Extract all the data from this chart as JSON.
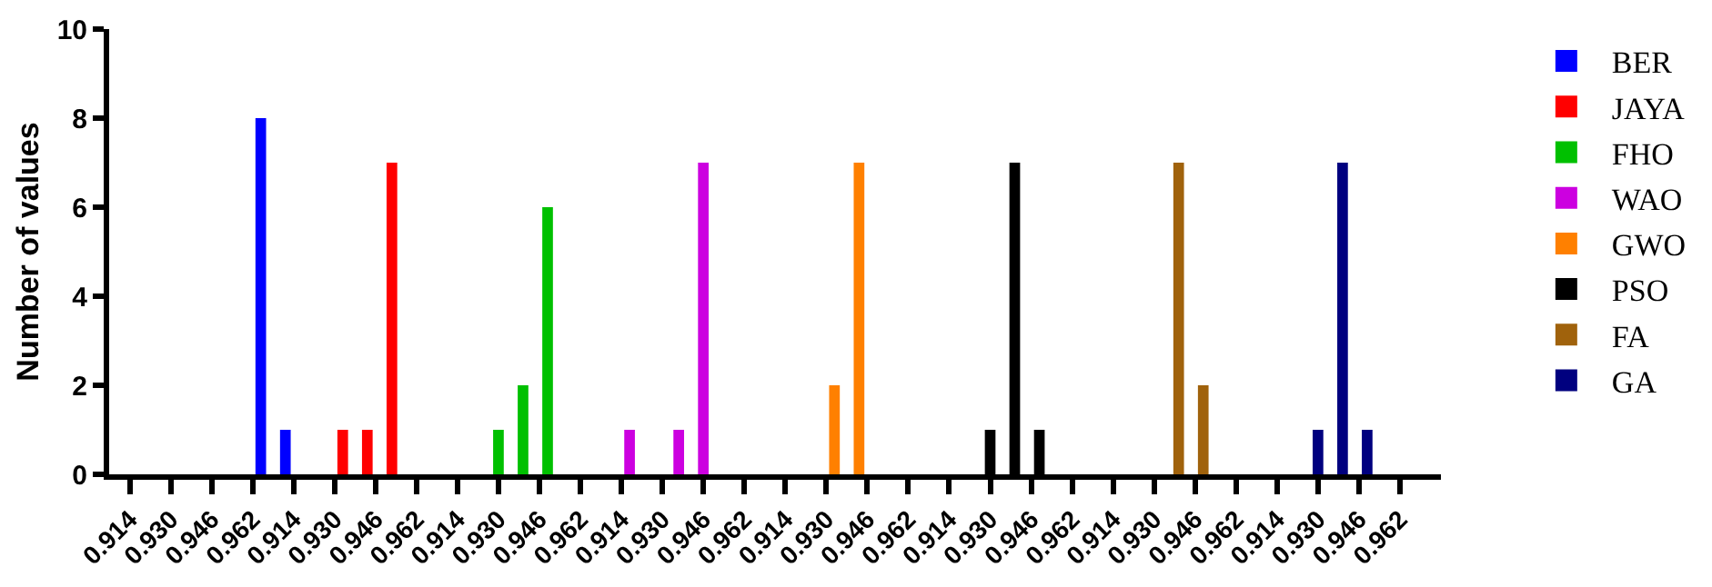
{
  "chart_data": {
    "type": "bar",
    "ylabel": "Number of values",
    "categories": [
      "0.914",
      null,
      null,
      null,
      null,
      "0.930",
      null,
      null,
      null,
      null,
      "0.946",
      null,
      null,
      null,
      null,
      "0.962",
      null,
      null,
      null,
      null,
      "0.914",
      null,
      null,
      null,
      null,
      "0.930",
      null,
      null,
      null,
      null,
      "0.946",
      null,
      null,
      null,
      null,
      "0.962",
      null,
      null,
      null,
      null,
      "0.914",
      null,
      null,
      null,
      null,
      "0.930",
      null,
      null,
      null,
      null,
      "0.946",
      null,
      null,
      null,
      null,
      "0.962",
      null,
      null,
      null,
      null,
      "0.914",
      null,
      null,
      null,
      null,
      "0.930",
      null,
      null,
      null,
      null,
      "0.946",
      null,
      null,
      null,
      null,
      "0.962",
      null,
      null,
      null,
      null,
      "0.914",
      null,
      null,
      null,
      null,
      "0.930",
      null,
      null,
      null,
      null,
      "0.946",
      null,
      null,
      null,
      null,
      "0.962",
      null,
      null,
      null,
      null,
      "0.914",
      null,
      null,
      null,
      null,
      "0.930",
      null,
      null,
      null,
      null,
      "0.946",
      null,
      null,
      null,
      null,
      "0.962",
      null,
      null,
      null,
      null,
      "0.914",
      null,
      null,
      null,
      null,
      "0.930",
      null,
      null,
      null,
      null,
      "0.946",
      null,
      null,
      null,
      null,
      "0.962",
      null,
      null,
      null,
      null,
      "0.914",
      null,
      null,
      null,
      null,
      "0.930",
      null,
      null,
      null,
      null,
      "0.946",
      null,
      null,
      null,
      null,
      "0.962",
      null,
      null,
      null,
      null
    ],
    "ylim": [
      0,
      10
    ],
    "yticks": [
      0,
      2,
      4,
      6,
      8,
      10
    ],
    "legend": "right",
    "series": [
      {
        "name": "BER",
        "color": "#0000ff",
        "values": [
          null,
          null,
          null,
          null,
          null,
          null,
          null,
          null,
          null,
          null,
          null,
          null,
          null,
          null,
          null,
          null,
          8,
          null,
          null,
          1,
          null,
          null,
          null,
          null,
          null,
          null,
          null,
          null,
          null,
          null,
          null,
          null,
          null,
          null,
          null,
          null,
          null,
          null,
          null,
          null,
          null,
          null,
          null,
          null,
          null,
          null,
          null,
          null,
          null,
          null,
          null,
          null,
          null,
          null,
          null,
          null,
          null,
          null,
          null,
          null,
          null,
          null,
          null,
          null,
          null,
          null,
          null,
          null,
          null,
          null,
          null,
          null,
          null,
          null,
          null,
          null,
          null,
          null,
          null,
          null,
          null,
          null,
          null,
          null,
          null,
          null,
          null,
          null,
          null,
          null,
          null,
          null,
          null,
          null,
          null,
          null,
          null,
          null,
          null,
          null,
          null,
          null,
          null,
          null,
          null,
          null,
          null,
          null,
          null,
          null,
          null,
          null,
          null,
          null,
          null,
          null,
          null,
          null,
          null,
          null,
          null,
          null,
          null,
          null,
          null,
          null,
          null,
          null,
          null,
          null,
          null,
          null,
          null,
          null,
          null,
          null,
          null,
          null,
          null,
          null,
          null,
          null,
          null,
          null,
          null,
          null,
          null,
          null,
          null,
          null,
          null,
          null,
          null,
          null,
          null,
          null,
          null,
          null,
          null,
          null
        ]
      },
      {
        "name": "JAYA",
        "color": "#ff0000",
        "values": [
          null,
          null,
          null,
          null,
          null,
          null,
          null,
          null,
          null,
          null,
          null,
          null,
          null,
          null,
          null,
          null,
          null,
          null,
          null,
          null,
          null,
          null,
          null,
          null,
          null,
          null,
          1,
          null,
          null,
          1,
          null,
          null,
          7,
          null,
          null,
          null,
          null,
          null,
          null,
          null,
          null,
          null,
          null,
          null,
          null,
          null,
          null,
          null,
          null,
          null,
          null,
          null,
          null,
          null,
          null,
          null,
          null,
          null,
          null,
          null,
          null,
          null,
          null,
          null,
          null,
          null,
          null,
          null,
          null,
          null,
          null,
          null,
          null,
          null,
          null,
          null,
          null,
          null,
          null,
          null,
          null,
          null,
          null,
          null,
          null,
          null,
          null,
          null,
          null,
          null,
          null,
          null,
          null,
          null,
          null,
          null,
          null,
          null,
          null,
          null,
          null,
          null,
          null,
          null,
          null,
          null,
          null,
          null,
          null,
          null,
          null,
          null,
          null,
          null,
          null,
          null,
          null,
          null,
          null,
          null,
          null,
          null,
          null,
          null,
          null,
          null,
          null,
          null,
          null,
          null,
          null,
          null,
          null,
          null,
          null,
          null,
          null,
          null,
          null,
          null,
          null,
          null,
          null,
          null,
          null,
          null,
          null,
          null,
          null,
          null,
          null,
          null,
          null,
          null,
          null,
          null,
          null,
          null,
          null,
          null
        ]
      },
      {
        "name": "FHO",
        "color": "#00c000",
        "values": [
          null,
          null,
          null,
          null,
          null,
          null,
          null,
          null,
          null,
          null,
          null,
          null,
          null,
          null,
          null,
          null,
          null,
          null,
          null,
          null,
          null,
          null,
          null,
          null,
          null,
          null,
          null,
          null,
          null,
          null,
          null,
          null,
          null,
          null,
          null,
          null,
          null,
          null,
          null,
          null,
          null,
          null,
          null,
          null,
          null,
          1,
          null,
          null,
          2,
          null,
          null,
          6,
          null,
          null,
          null,
          null,
          null,
          null,
          null,
          null,
          null,
          null,
          null,
          null,
          null,
          null,
          null,
          null,
          null,
          null,
          null,
          null,
          null,
          null,
          null,
          null,
          null,
          null,
          null,
          null,
          null,
          null,
          null,
          null,
          null,
          null,
          null,
          null,
          null,
          null,
          null,
          null,
          null,
          null,
          null,
          null,
          null,
          null,
          null,
          null,
          null,
          null,
          null,
          null,
          null,
          null,
          null,
          null,
          null,
          null,
          null,
          null,
          null,
          null,
          null,
          null,
          null,
          null,
          null,
          null,
          null,
          null,
          null,
          null,
          null,
          null,
          null,
          null,
          null,
          null,
          null,
          null,
          null,
          null,
          null,
          null,
          null,
          null,
          null,
          null,
          null,
          null,
          null,
          null,
          null,
          null,
          null,
          null,
          null,
          null,
          null,
          null,
          null,
          null,
          null,
          null,
          null,
          null,
          null,
          null
        ]
      },
      {
        "name": "WAO",
        "color": "#cc00e0",
        "values": [
          null,
          null,
          null,
          null,
          null,
          null,
          null,
          null,
          null,
          null,
          null,
          null,
          null,
          null,
          null,
          null,
          null,
          null,
          null,
          null,
          null,
          null,
          null,
          null,
          null,
          null,
          null,
          null,
          null,
          null,
          null,
          null,
          null,
          null,
          null,
          null,
          null,
          null,
          null,
          null,
          null,
          null,
          null,
          null,
          null,
          null,
          null,
          null,
          null,
          null,
          null,
          null,
          null,
          null,
          null,
          null,
          null,
          null,
          null,
          null,
          null,
          1,
          null,
          null,
          null,
          null,
          null,
          1,
          null,
          null,
          7,
          null,
          null,
          null,
          null,
          null,
          null,
          null,
          null,
          null,
          null,
          null,
          null,
          null,
          null,
          null,
          null,
          null,
          null,
          null,
          null,
          null,
          null,
          null,
          null,
          null,
          null,
          null,
          null,
          null,
          null,
          null,
          null,
          null,
          null,
          null,
          null,
          null,
          null,
          null,
          null,
          null,
          null,
          null,
          null,
          null,
          null,
          null,
          null,
          null,
          null,
          null,
          null,
          null,
          null,
          null,
          null,
          null,
          null,
          null,
          null,
          null,
          null,
          null,
          null,
          null,
          null,
          null,
          null,
          null,
          null,
          null,
          null,
          null,
          null,
          null,
          null,
          null,
          null,
          null,
          null,
          null,
          null,
          null,
          null,
          null,
          null,
          null,
          null,
          null
        ]
      },
      {
        "name": "GWO",
        "color": "#ff8000",
        "values": [
          null,
          null,
          null,
          null,
          null,
          null,
          null,
          null,
          null,
          null,
          null,
          null,
          null,
          null,
          null,
          null,
          null,
          null,
          null,
          null,
          null,
          null,
          null,
          null,
          null,
          null,
          null,
          null,
          null,
          null,
          null,
          null,
          null,
          null,
          null,
          null,
          null,
          null,
          null,
          null,
          null,
          null,
          null,
          null,
          null,
          null,
          null,
          null,
          null,
          null,
          null,
          null,
          null,
          null,
          null,
          null,
          null,
          null,
          null,
          null,
          null,
          null,
          null,
          null,
          null,
          null,
          null,
          null,
          null,
          null,
          null,
          null,
          null,
          null,
          null,
          null,
          null,
          null,
          null,
          null,
          null,
          null,
          null,
          null,
          null,
          null,
          2,
          null,
          null,
          7,
          null,
          null,
          null,
          null,
          null,
          null,
          null,
          null,
          null,
          null,
          null,
          null,
          null,
          null,
          null,
          null,
          null,
          null,
          null,
          null,
          null,
          null,
          null,
          null,
          null,
          null,
          null,
          null,
          null,
          null,
          null,
          null,
          null,
          null,
          null,
          null,
          null,
          null,
          null,
          null,
          null,
          null,
          null,
          null,
          null,
          null,
          null,
          null,
          null,
          null,
          null,
          null,
          null,
          null,
          null,
          null,
          null,
          null,
          null,
          null,
          null,
          null,
          null,
          null,
          null,
          null,
          null,
          null,
          null,
          null
        ]
      },
      {
        "name": "PSO",
        "color": "#000000",
        "values": [
          null,
          null,
          null,
          null,
          null,
          null,
          null,
          null,
          null,
          null,
          null,
          null,
          null,
          null,
          null,
          null,
          null,
          null,
          null,
          null,
          null,
          null,
          null,
          null,
          null,
          null,
          null,
          null,
          null,
          null,
          null,
          null,
          null,
          null,
          null,
          null,
          null,
          null,
          null,
          null,
          null,
          null,
          null,
          null,
          null,
          null,
          null,
          null,
          null,
          null,
          null,
          null,
          null,
          null,
          null,
          null,
          null,
          null,
          null,
          null,
          null,
          null,
          null,
          null,
          null,
          null,
          null,
          null,
          null,
          null,
          null,
          null,
          null,
          null,
          null,
          null,
          null,
          null,
          null,
          null,
          null,
          null,
          null,
          null,
          null,
          null,
          null,
          null,
          null,
          null,
          null,
          null,
          null,
          null,
          null,
          null,
          null,
          null,
          null,
          null,
          null,
          null,
          null,
          null,
          null,
          1,
          null,
          null,
          7,
          null,
          null,
          1,
          null,
          null,
          null,
          null,
          null,
          null,
          null,
          null,
          null,
          null,
          null,
          null,
          null,
          null,
          null,
          null,
          null,
          null,
          null,
          null,
          null,
          null,
          null,
          null,
          null,
          null,
          null,
          null,
          null,
          null,
          null,
          null,
          null,
          null,
          null,
          null,
          null,
          null,
          null,
          null,
          null,
          null,
          null,
          null,
          null,
          null,
          null,
          null
        ]
      },
      {
        "name": "FA",
        "color": "#a0620c",
        "values": [
          null,
          null,
          null,
          null,
          null,
          null,
          null,
          null,
          null,
          null,
          null,
          null,
          null,
          null,
          null,
          null,
          null,
          null,
          null,
          null,
          null,
          null,
          null,
          null,
          null,
          null,
          null,
          null,
          null,
          null,
          null,
          null,
          null,
          null,
          null,
          null,
          null,
          null,
          null,
          null,
          null,
          null,
          null,
          null,
          null,
          null,
          null,
          null,
          null,
          null,
          null,
          null,
          null,
          null,
          null,
          null,
          null,
          null,
          null,
          null,
          null,
          null,
          null,
          null,
          null,
          null,
          null,
          null,
          null,
          null,
          null,
          null,
          null,
          null,
          null,
          null,
          null,
          null,
          null,
          null,
          null,
          null,
          null,
          null,
          null,
          null,
          null,
          null,
          null,
          null,
          null,
          null,
          null,
          null,
          null,
          null,
          null,
          null,
          null,
          null,
          null,
          null,
          null,
          null,
          null,
          null,
          null,
          null,
          null,
          null,
          null,
          null,
          null,
          null,
          null,
          null,
          null,
          null,
          null,
          null,
          null,
          null,
          null,
          null,
          null,
          null,
          null,
          null,
          7,
          null,
          null,
          2,
          null,
          null,
          null,
          null,
          null,
          null,
          null,
          null,
          null,
          null,
          null,
          null,
          null,
          null,
          null,
          null,
          null,
          null,
          null,
          null,
          null,
          null,
          null,
          null,
          null,
          null,
          null,
          null
        ]
      },
      {
        "name": "GA",
        "color": "#00007f",
        "values": [
          null,
          null,
          null,
          null,
          null,
          null,
          null,
          null,
          null,
          null,
          null,
          null,
          null,
          null,
          null,
          null,
          null,
          null,
          null,
          null,
          null,
          null,
          null,
          null,
          null,
          null,
          null,
          null,
          null,
          null,
          null,
          null,
          null,
          null,
          null,
          null,
          null,
          null,
          null,
          null,
          null,
          null,
          null,
          null,
          null,
          null,
          null,
          null,
          null,
          null,
          null,
          null,
          null,
          null,
          null,
          null,
          null,
          null,
          null,
          null,
          null,
          null,
          null,
          null,
          null,
          null,
          null,
          null,
          null,
          null,
          null,
          null,
          null,
          null,
          null,
          null,
          null,
          null,
          null,
          null,
          null,
          null,
          null,
          null,
          null,
          null,
          null,
          null,
          null,
          null,
          null,
          null,
          null,
          null,
          null,
          null,
          null,
          null,
          null,
          null,
          null,
          null,
          null,
          null,
          null,
          null,
          null,
          null,
          null,
          null,
          null,
          null,
          null,
          null,
          null,
          null,
          null,
          null,
          null,
          null,
          null,
          null,
          null,
          null,
          null,
          null,
          null,
          null,
          null,
          null,
          null,
          null,
          null,
          null,
          null,
          null,
          null,
          null,
          null,
          null,
          null,
          null,
          null,
          null,
          null,
          1,
          null,
          null,
          7,
          null,
          null,
          1,
          null,
          null,
          null,
          null,
          null,
          null,
          null,
          null
        ]
      }
    ]
  }
}
